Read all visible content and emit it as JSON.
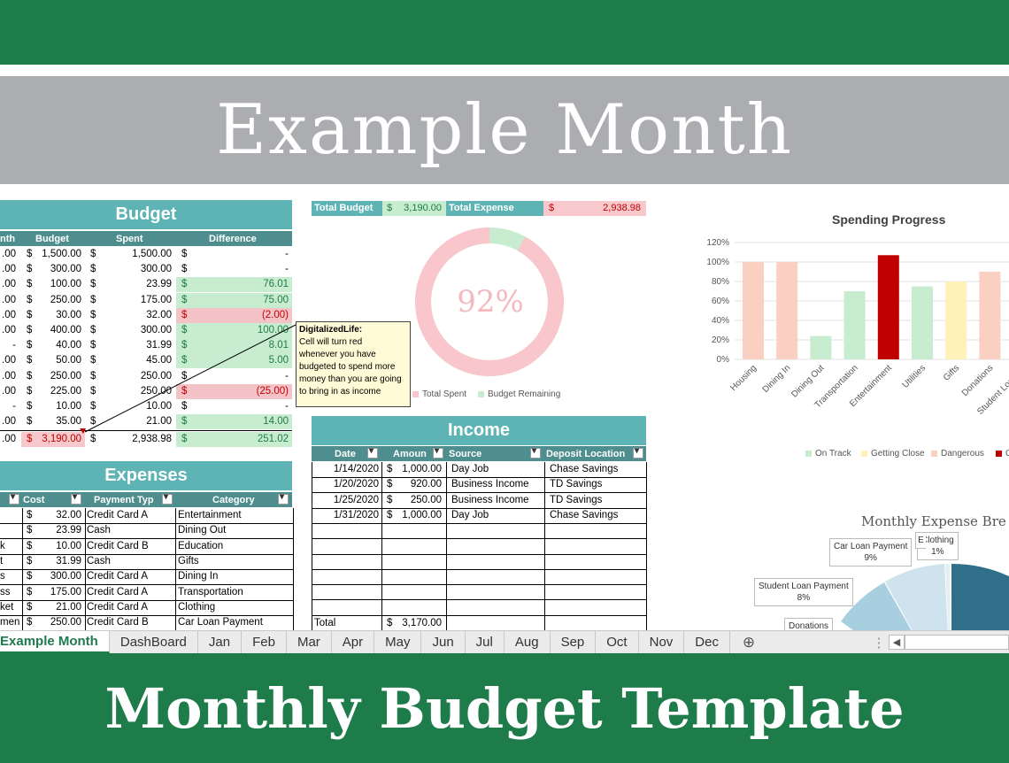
{
  "title": "Example Month",
  "footer_title": "Monthly Budget Template",
  "budget": {
    "heading": "Budget",
    "columns": [
      "nth",
      "Budget",
      "Spent",
      "Difference"
    ],
    "rows": [
      {
        "a": ".00",
        "budget": "1,500.00",
        "spent": "1,500.00",
        "diff": "-",
        "status": "none"
      },
      {
        "a": ".00",
        "budget": "300.00",
        "spent": "300.00",
        "diff": "-",
        "status": "none"
      },
      {
        "a": ".00",
        "budget": "100.00",
        "spent": "23.99",
        "diff": "76.01",
        "status": "green"
      },
      {
        "a": ".00",
        "budget": "250.00",
        "spent": "175.00",
        "diff": "75.00",
        "status": "green"
      },
      {
        "a": ".00",
        "budget": "30.00",
        "spent": "32.00",
        "diff": "(2.00)",
        "status": "red"
      },
      {
        "a": ".00",
        "budget": "400.00",
        "spent": "300.00",
        "diff": "100.00",
        "status": "green"
      },
      {
        "a": "-",
        "budget": "40.00",
        "spent": "31.99",
        "diff": "8.01",
        "status": "green"
      },
      {
        "a": ".00",
        "budget": "50.00",
        "spent": "45.00",
        "diff": "5.00",
        "status": "green"
      },
      {
        "a": ".00",
        "budget": "250.00",
        "spent": "250.00",
        "diff": "-",
        "status": "none"
      },
      {
        "a": ".00",
        "budget": "225.00",
        "spent": "250.00",
        "diff": "(25.00)",
        "status": "red"
      },
      {
        "a": "-",
        "budget": "10.00",
        "spent": "10.00",
        "diff": "-",
        "status": "none"
      },
      {
        "a": ".00",
        "budget": "35.00",
        "spent": "21.00",
        "diff": "14.00",
        "status": "green"
      }
    ],
    "total": {
      "a": ".00",
      "budget": "3,190.00",
      "spent": "2,938.98",
      "diff": "251.02"
    },
    "currency": "$"
  },
  "comment": {
    "author": "DigitalizedLife:",
    "lines": [
      "Cell will turn red",
      "whenever you have",
      "budgeted to spend more",
      "money than you are going",
      "to bring in as income"
    ]
  },
  "totals_strip": {
    "budget_label": "Total Budget",
    "budget_value": "3,190.00",
    "expense_label": "Total Expense",
    "expense_value": "2,938.98",
    "currency": "$"
  },
  "donut": {
    "percent_label": "92%",
    "legend": [
      "Total Spent",
      "Budget Remaining"
    ],
    "spent_fraction": 0.92,
    "colors": [
      "#f9c6cb",
      "#c8eccf"
    ]
  },
  "expenses": {
    "heading": "Expenses",
    "columns": [
      "Cost",
      "Payment Typ",
      "Category"
    ],
    "rows": [
      {
        "a": "",
        "cost": "32.00",
        "pay": "Credit Card A",
        "cat": "Entertainment"
      },
      {
        "a": "",
        "cost": "23.99",
        "pay": "Cash",
        "cat": "Dining Out"
      },
      {
        "a": "k",
        "cost": "10.00",
        "pay": "Credit Card B",
        "cat": "Education"
      },
      {
        "a": "t",
        "cost": "31.99",
        "pay": "Cash",
        "cat": "Gifts"
      },
      {
        "a": "s",
        "cost": "300.00",
        "pay": "Credit Card A",
        "cat": "Dining In"
      },
      {
        "a": "ss",
        "cost": "175.00",
        "pay": "Credit Card A",
        "cat": "Transportation"
      },
      {
        "a": "ket",
        "cost": "21.00",
        "pay": "Credit Card A",
        "cat": "Clothing"
      },
      {
        "a": "men",
        "cost": "250.00",
        "pay": "Credit Card B",
        "cat": "Car Loan Payment"
      }
    ]
  },
  "income": {
    "heading": "Income",
    "columns": [
      "Date",
      "Amoun",
      "Source",
      "Deposit Location"
    ],
    "rows": [
      {
        "date": "1/14/2020",
        "amount": "1,000.00",
        "source": "Day Job",
        "loc": "Chase Savings"
      },
      {
        "date": "1/20/2020",
        "amount": "920.00",
        "source": "Business Income",
        "loc": "TD Savings"
      },
      {
        "date": "1/25/2020",
        "amount": "250.00",
        "source": "Business Income",
        "loc": "TD Savings"
      },
      {
        "date": "1/31/2020",
        "amount": "1,000.00",
        "source": "Day Job",
        "loc": "Chase Savings"
      }
    ],
    "total_label": "Total",
    "total_value": "3,170.00"
  },
  "chart_data": [
    {
      "type": "bar",
      "title": "Spending Progress",
      "categories": [
        "Housing",
        "Dining In",
        "Dining Out",
        "Transportation",
        "Entertainment",
        "Utilities",
        "Gifts",
        "Donations",
        "Student Loan Pa"
      ],
      "values": [
        100,
        100,
        24,
        70,
        107,
        75,
        80,
        90,
        0
      ],
      "colors": [
        "#f9d0c1",
        "#f9d0c1",
        "#c8eccf",
        "#c8eccf",
        "#c00000",
        "#c8eccf",
        "#fff2b8",
        "#f9d0c1",
        "#c8eccf"
      ],
      "ylim": [
        0,
        120
      ],
      "yticks": [
        "0%",
        "20%",
        "40%",
        "60%",
        "80%",
        "100%",
        "120%"
      ],
      "legend": [
        {
          "name": "On Track",
          "color": "#c8eccf"
        },
        {
          "name": "Getting Close",
          "color": "#fff2b8"
        },
        {
          "name": "Dangerous",
          "color": "#f9d0c1"
        },
        {
          "name": "O",
          "color": "#c00000"
        }
      ]
    },
    {
      "type": "pie",
      "title": "Monthly Expense Bre",
      "labels": [
        {
          "name": "Car Loan Payment",
          "pct": "9%"
        },
        {
          "name": "Student Loan Payment",
          "pct": "8%"
        },
        {
          "name": "Clothing",
          "pct": "1%"
        },
        {
          "name": "Donations",
          "pct": ""
        },
        {
          "name": "E",
          "pct": ""
        }
      ]
    }
  ],
  "tabs": [
    "Example Month",
    "DashBoard",
    "Jan",
    "Feb",
    "Mar",
    "Apr",
    "May",
    "Jun",
    "Jul",
    "Aug",
    "Sep",
    "Oct",
    "Nov",
    "Dec"
  ],
  "colors": {
    "brand_green": "#1e7b4a",
    "teal_header": "#5eb4b4",
    "teal_dark": "#4f8e8e",
    "title_gray": "#acadb1"
  }
}
